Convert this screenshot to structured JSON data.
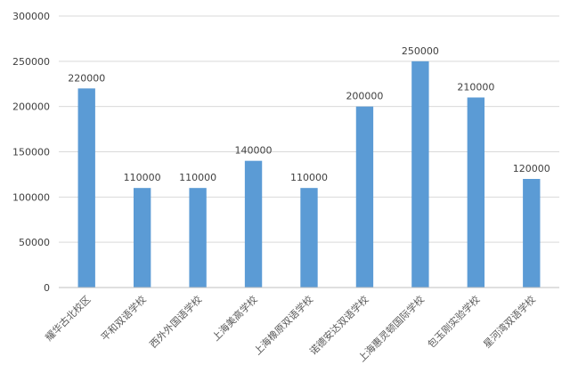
{
  "chart_data": {
    "type": "bar",
    "categories": [
      "耀华古北校区",
      "平和双语学校",
      "西外外国语学校",
      "上海美高学校",
      "上海橡原双语学校",
      "诺德安达双语学校",
      "上海惠灵顿国际学校",
      "包玉刚实验学校",
      "星河湾双语学校"
    ],
    "values": [
      220000,
      110000,
      110000,
      140000,
      110000,
      200000,
      250000,
      210000,
      120000
    ],
    "data_labels": [
      "220000",
      "110000",
      "110000",
      "140000",
      "110000",
      "200000",
      "250000",
      "210000",
      "120000"
    ],
    "yticks": [
      "0",
      "50000",
      "100000",
      "150000",
      "200000",
      "250000",
      "300000"
    ],
    "ylim": [
      0,
      300000
    ],
    "grid": true,
    "legend": "none",
    "colors": {
      "bar": "#5b9bd5",
      "grid": "#d9d9d9",
      "axis": "#bfbfbf"
    }
  }
}
